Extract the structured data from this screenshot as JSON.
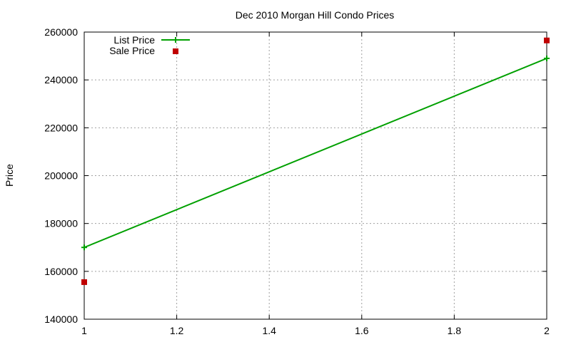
{
  "chart_data": {
    "type": "line",
    "title": "Dec 2010 Morgan Hill Condo Prices",
    "xlabel": "",
    "ylabel": "Price",
    "xlim": [
      1,
      2
    ],
    "ylim": [
      140000,
      260000
    ],
    "x_ticks": [
      1,
      1.2,
      1.4,
      1.6,
      1.8,
      2
    ],
    "x_tick_labels": [
      "1",
      "1.2",
      "1.4",
      "1.6",
      "1.8",
      "2"
    ],
    "y_ticks": [
      140000,
      160000,
      180000,
      200000,
      220000,
      240000,
      260000
    ],
    "y_tick_labels": [
      "140000",
      "160000",
      "180000",
      "200000",
      "220000",
      "240000",
      "260000"
    ],
    "grid": true,
    "legend_position": "top-left",
    "series": [
      {
        "name": "List Price",
        "type": "linespoints",
        "color": "#00a000",
        "marker": "plus",
        "points": [
          {
            "x": 1,
            "y": 170000
          },
          {
            "x": 2,
            "y": 249000
          }
        ]
      },
      {
        "name": "Sale Price",
        "type": "points",
        "color": "#c00000",
        "marker": "square",
        "points": [
          {
            "x": 1,
            "y": 155500
          },
          {
            "x": 2,
            "y": 256500
          }
        ]
      }
    ]
  }
}
